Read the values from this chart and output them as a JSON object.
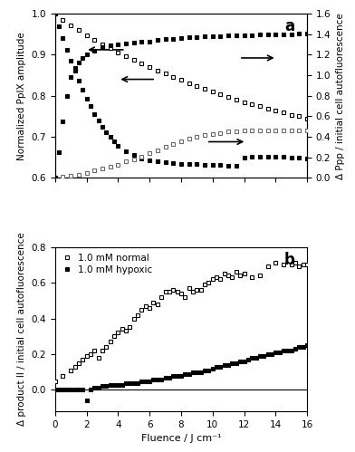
{
  "panel_a": {
    "title": "a",
    "ylabel_left": "Normalized PpIX amplitude",
    "ylabel_right": "Δ Ppp / initial cell autofluorescence",
    "xlim": [
      0,
      16
    ],
    "ylim_left": [
      0.6,
      1.0
    ],
    "ylim_right": [
      0.0,
      1.6
    ],
    "xticks": [
      0,
      2,
      4,
      6,
      8,
      10,
      12,
      14,
      16
    ],
    "yticks_left": [
      0.6,
      0.7,
      0.8,
      0.9,
      1.0
    ],
    "yticks_right": [
      0.0,
      0.2,
      0.4,
      0.6,
      0.8,
      1.0,
      1.2,
      1.4,
      1.6
    ],
    "ppix_normal_x": [
      0,
      0.5,
      1,
      1.5,
      2,
      2.5,
      3,
      3.5,
      4,
      4.5,
      5,
      5.5,
      6,
      6.5,
      7,
      7.5,
      8,
      8.5,
      9,
      9.5,
      10,
      10.5,
      11,
      11.5,
      12,
      12.5,
      13,
      13.5,
      14,
      14.5,
      15,
      15.5,
      16
    ],
    "ppix_normal_y": [
      1.0,
      0.985,
      0.972,
      0.96,
      0.948,
      0.937,
      0.926,
      0.916,
      0.906,
      0.897,
      0.888,
      0.879,
      0.87,
      0.862,
      0.854,
      0.846,
      0.838,
      0.831,
      0.824,
      0.817,
      0.81,
      0.804,
      0.797,
      0.791,
      0.785,
      0.779,
      0.774,
      0.769,
      0.764,
      0.759,
      0.754,
      0.75,
      0.745
    ],
    "ppix_hypoxic_x": [
      0,
      0.25,
      0.5,
      0.75,
      1,
      1.25,
      1.5,
      1.75,
      2,
      2.25,
      2.5,
      2.75,
      3,
      3.25,
      3.5,
      3.75,
      4,
      4.5,
      5,
      5.5,
      6,
      6.5,
      7,
      7.5,
      8,
      8.5,
      9,
      9.5,
      10,
      10.5,
      11,
      11.5,
      12,
      12.5,
      13,
      13.5,
      14,
      14.5,
      15,
      15.5,
      16
    ],
    "ppix_hypoxic_y": [
      1.0,
      0.97,
      0.94,
      0.912,
      0.885,
      0.86,
      0.836,
      0.814,
      0.793,
      0.774,
      0.756,
      0.74,
      0.725,
      0.712,
      0.7,
      0.689,
      0.679,
      0.665,
      0.655,
      0.648,
      0.643,
      0.64,
      0.638,
      0.636,
      0.635,
      0.634,
      0.633,
      0.632,
      0.632,
      0.631,
      0.63,
      0.63,
      0.65,
      0.651,
      0.651,
      0.651,
      0.651,
      0.651,
      0.65,
      0.649,
      0.648
    ],
    "ppp_normal_x": [
      0,
      0.5,
      1,
      1.5,
      2,
      2.5,
      3,
      3.5,
      4,
      4.5,
      5,
      5.5,
      6,
      6.5,
      7,
      7.5,
      8,
      8.5,
      9,
      9.5,
      10,
      10.5,
      11,
      11.5,
      12,
      12.5,
      13,
      13.5,
      14,
      14.5,
      15,
      15.5,
      16
    ],
    "ppp_normal_y": [
      0.0,
      0.01,
      0.02,
      0.03,
      0.05,
      0.07,
      0.09,
      0.11,
      0.13,
      0.16,
      0.18,
      0.21,
      0.24,
      0.27,
      0.3,
      0.33,
      0.36,
      0.38,
      0.4,
      0.42,
      0.43,
      0.44,
      0.45,
      0.45,
      0.46,
      0.46,
      0.46,
      0.46,
      0.46,
      0.46,
      0.46,
      0.46,
      0.46
    ],
    "ppp_hypoxic_x": [
      0,
      0.25,
      0.5,
      0.75,
      1,
      1.25,
      1.5,
      1.75,
      2,
      2.5,
      3,
      3.5,
      4,
      4.5,
      5,
      5.5,
      6,
      6.5,
      7,
      7.5,
      8,
      8.5,
      9,
      9.5,
      10,
      10.5,
      11,
      11.5,
      12,
      12.5,
      13,
      13.5,
      14,
      14.5,
      15,
      15.5,
      16
    ],
    "ppp_hypoxic_y": [
      0.0,
      0.25,
      0.55,
      0.8,
      0.98,
      1.07,
      1.12,
      1.17,
      1.2,
      1.24,
      1.27,
      1.29,
      1.3,
      1.31,
      1.32,
      1.33,
      1.33,
      1.34,
      1.35,
      1.35,
      1.36,
      1.37,
      1.37,
      1.38,
      1.38,
      1.38,
      1.39,
      1.39,
      1.39,
      1.39,
      1.4,
      1.4,
      1.4,
      1.4,
      1.4,
      1.41,
      1.41
    ],
    "arrow1_from": [
      0.28,
      0.78
    ],
    "arrow1_to": [
      0.12,
      0.78
    ],
    "arrow2_from": [
      0.4,
      0.6
    ],
    "arrow2_to": [
      0.25,
      0.6
    ],
    "arrow3_from": [
      0.6,
      0.22
    ],
    "arrow3_to": [
      0.76,
      0.22
    ],
    "arrow4_from": [
      0.73,
      0.73
    ],
    "arrow4_to": [
      0.88,
      0.73
    ]
  },
  "panel_b": {
    "title": "b",
    "xlabel": "Fluence / J cm⁻¹",
    "ylabel": "Δ product II / initial cell autofluorescence",
    "xlim": [
      0,
      16
    ],
    "ylim": [
      -0.12,
      0.8
    ],
    "xticks": [
      0,
      2,
      4,
      6,
      8,
      10,
      12,
      14,
      16
    ],
    "yticks": [
      0.0,
      0.2,
      0.4,
      0.6,
      0.8
    ],
    "legend_normal": "1.0 mM normal",
    "legend_hypoxic": "1.0 mM hypoxic",
    "normal_x": [
      0,
      0.5,
      1,
      1.25,
      1.5,
      1.75,
      2,
      2.25,
      2.5,
      2.75,
      3,
      3.25,
      3.5,
      3.75,
      4,
      4.25,
      4.5,
      4.75,
      5,
      5.25,
      5.5,
      5.75,
      6,
      6.25,
      6.5,
      6.75,
      7,
      7.25,
      7.5,
      7.75,
      8,
      8.25,
      8.5,
      8.75,
      9,
      9.25,
      9.5,
      9.75,
      10,
      10.25,
      10.5,
      10.75,
      11,
      11.25,
      11.5,
      11.75,
      12,
      12.5,
      13,
      13.5,
      14,
      14.5,
      15,
      15.25,
      15.5,
      15.75,
      16
    ],
    "normal_y": [
      0.05,
      0.08,
      0.11,
      0.13,
      0.15,
      0.17,
      0.19,
      0.2,
      0.22,
      0.18,
      0.22,
      0.24,
      0.27,
      0.3,
      0.32,
      0.34,
      0.33,
      0.35,
      0.4,
      0.42,
      0.45,
      0.47,
      0.46,
      0.49,
      0.48,
      0.52,
      0.55,
      0.55,
      0.56,
      0.55,
      0.54,
      0.52,
      0.57,
      0.55,
      0.56,
      0.56,
      0.59,
      0.6,
      0.62,
      0.63,
      0.62,
      0.65,
      0.64,
      0.63,
      0.66,
      0.64,
      0.65,
      0.63,
      0.64,
      0.69,
      0.71,
      0.7,
      0.7,
      0.71,
      0.69,
      0.7,
      0.7
    ],
    "hypoxic_x": [
      0,
      0.25,
      0.5,
      0.75,
      1,
      1.25,
      1.5,
      1.75,
      2,
      2.25,
      2.5,
      2.75,
      3,
      3.25,
      3.5,
      3.75,
      4,
      4.25,
      4.5,
      4.75,
      5,
      5.25,
      5.5,
      5.75,
      6,
      6.25,
      6.5,
      6.75,
      7,
      7.25,
      7.5,
      7.75,
      8,
      8.25,
      8.5,
      8.75,
      9,
      9.25,
      9.5,
      9.75,
      10,
      10.25,
      10.5,
      10.75,
      11,
      11.25,
      11.5,
      11.75,
      12,
      12.25,
      12.5,
      12.75,
      13,
      13.25,
      13.5,
      13.75,
      14,
      14.25,
      14.5,
      14.75,
      15,
      15.25,
      15.5,
      15.75,
      16
    ],
    "hypoxic_y": [
      0.0,
      0.0,
      0.0,
      0.0,
      0.0,
      0.0,
      0.0,
      0.0,
      -0.06,
      0.0,
      0.01,
      0.01,
      0.02,
      0.02,
      0.03,
      0.03,
      0.03,
      0.03,
      0.04,
      0.04,
      0.04,
      0.04,
      0.05,
      0.05,
      0.05,
      0.06,
      0.06,
      0.06,
      0.07,
      0.07,
      0.08,
      0.08,
      0.08,
      0.09,
      0.09,
      0.1,
      0.1,
      0.1,
      0.11,
      0.11,
      0.12,
      0.13,
      0.13,
      0.14,
      0.14,
      0.15,
      0.15,
      0.16,
      0.16,
      0.17,
      0.18,
      0.18,
      0.19,
      0.19,
      0.2,
      0.2,
      0.21,
      0.21,
      0.22,
      0.22,
      0.22,
      0.23,
      0.24,
      0.24,
      0.25
    ]
  }
}
